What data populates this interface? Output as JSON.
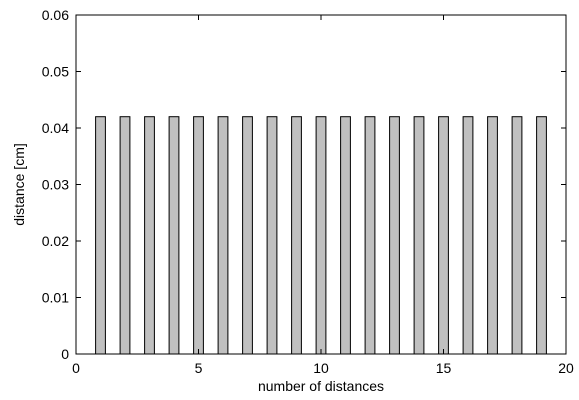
{
  "chart_data": {
    "type": "bar",
    "title": "",
    "xlabel": "number of distances",
    "ylabel": "distance [cm]",
    "x": [
      1,
      2,
      3,
      4,
      5,
      6,
      7,
      8,
      9,
      10,
      11,
      12,
      13,
      14,
      15,
      16,
      17,
      18,
      19
    ],
    "values": [
      0.042,
      0.042,
      0.042,
      0.042,
      0.042,
      0.042,
      0.042,
      0.042,
      0.042,
      0.042,
      0.042,
      0.042,
      0.042,
      0.042,
      0.042,
      0.042,
      0.042,
      0.042,
      0.042
    ],
    "xlim": [
      0,
      20
    ],
    "ylim": [
      0,
      0.06
    ],
    "xticks": [
      0,
      5,
      10,
      15,
      20
    ],
    "xtick_labels": [
      "0",
      "5",
      "10",
      "15",
      "20"
    ],
    "yticks": [
      0,
      0.01,
      0.02,
      0.03,
      0.04,
      0.05,
      0.06
    ],
    "ytick_labels": [
      "0",
      "0.01",
      "0.02",
      "0.03",
      "0.04",
      "0.05",
      "0.06"
    ],
    "grid": false,
    "legend": "none",
    "colors": {
      "bar_fill": "#c0c0c0",
      "bar_edge": "#000000",
      "axes": "#000000",
      "background": "#ffffff"
    }
  }
}
